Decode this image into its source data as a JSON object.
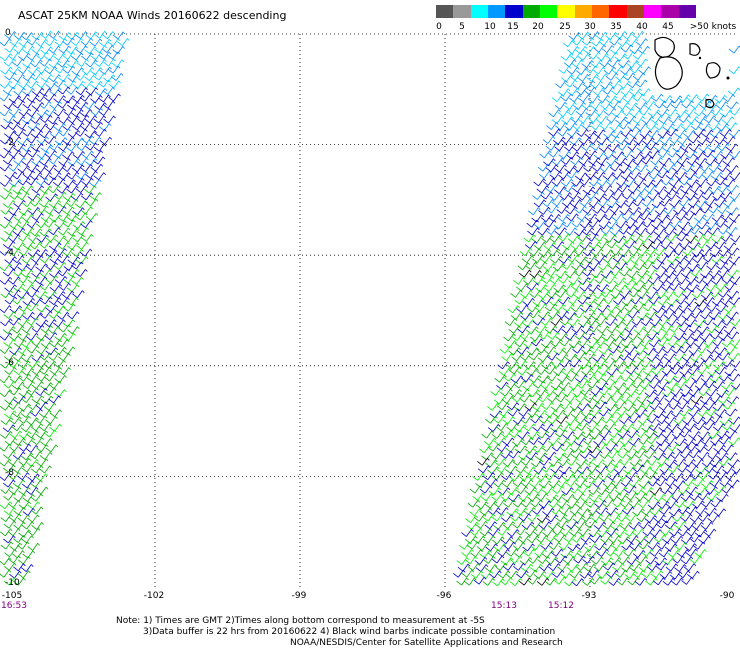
{
  "title": "ASCAT 25KM NOAA Winds 20160622 descending",
  "legend": {
    "colors": [
      "#555555",
      "#999999",
      "#00ffff",
      "#0099ff",
      "#0000cc",
      "#00aa00",
      "#00ff00",
      "#ffff00",
      "#ffaa00",
      "#ff6600",
      "#ff0000",
      "#aa4422",
      "#ff00ff",
      "#aa00aa",
      "#6600aa"
    ],
    "labels": [
      "0",
      "5",
      "10",
      "15",
      "20",
      "25",
      "30",
      "35",
      "40",
      "45",
      ">50 knots"
    ]
  },
  "y_axis": [
    "0",
    "-2",
    "-4",
    "-6",
    "-8",
    "-10"
  ],
  "x_axis": [
    "-105",
    "-102",
    "-99",
    "-96",
    "-93",
    "-90"
  ],
  "times": [
    "16:53",
    "15:13",
    "15:12"
  ],
  "notes": {
    "line1": "Note: 1) Times are GMT 2)Times along bottom correspond to measurement at -5S",
    "line2": "3)Data buffer is 22 hrs from 20160622 4) Black wind barbs indicate possible contamination",
    "line3": "NOAA/NESDIS/Center for Satellite Applications and Research"
  },
  "map_data": {
    "lon_range": [
      -105,
      -90
    ],
    "lat_range": [
      -10,
      0
    ],
    "grid_lon": [
      -102,
      -99,
      -96,
      -93
    ],
    "grid_lat": [
      -2,
      -4,
      -6,
      -8
    ]
  }
}
